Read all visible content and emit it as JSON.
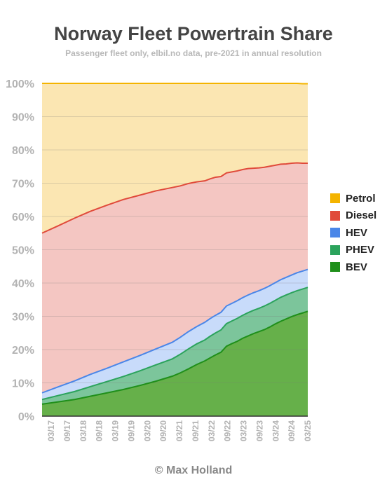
{
  "chart_data": {
    "type": "area",
    "stacked": true,
    "title": "Norway Fleet Powertrain Share",
    "subtitle": "Passenger fleet only, elbil.no data, pre-2021 in annual resolution",
    "credit": "© Max Holland",
    "ylim": [
      0,
      100
    ],
    "yticks": [
      "0%",
      "10%",
      "20%",
      "30%",
      "40%",
      "50%",
      "60%",
      "70%",
      "80%",
      "90%",
      "100%"
    ],
    "xticks": [
      "03/17",
      "09/17",
      "03/18",
      "09/18",
      "03/19",
      "09/19",
      "03/20",
      "09/20",
      "03/21",
      "09/21",
      "03/22",
      "09/22",
      "03/23",
      "09/23",
      "03/24",
      "09/24",
      "03/25"
    ],
    "legend_position": "right",
    "x": [
      "2017-01",
      "2017-07",
      "2018-01",
      "2018-07",
      "2019-01",
      "2019-07",
      "2020-01",
      "2020-07",
      "2021-01",
      "2021-04",
      "2021-07",
      "2021-10",
      "2022-01",
      "2022-03",
      "2022-05",
      "2022-07",
      "2022-09",
      "2022-11",
      "2023-01",
      "2023-03",
      "2023-05",
      "2023-07",
      "2023-09",
      "2023-11",
      "2024-01",
      "2024-03",
      "2024-05",
      "2024-07",
      "2024-09",
      "2024-11",
      "2025-01",
      "2025-03"
    ],
    "series": [
      {
        "name": "BEV",
        "color": "#1f8f1a",
        "values": [
          3.6,
          4.3,
          5.0,
          6.0,
          7.0,
          8.0,
          9.2,
          10.5,
          12.0,
          13.0,
          14.2,
          15.5,
          16.6,
          17.5,
          18.4,
          19.2,
          21.0,
          21.8,
          22.5,
          23.4,
          24.1,
          24.8,
          25.4,
          26.0,
          26.8,
          27.7,
          28.5,
          29.2,
          29.9,
          30.5,
          31.0,
          31.5
        ]
      },
      {
        "name": "PHEV",
        "color": "#2ba35c",
        "values": [
          1.4,
          1.9,
          2.4,
          2.9,
          3.4,
          3.9,
          4.4,
          4.9,
          5.2,
          5.6,
          6.0,
          6.2,
          6.3,
          6.5,
          6.6,
          6.7,
          6.8,
          6.8,
          6.9,
          6.9,
          7.0,
          7.0,
          7.0,
          7.1,
          7.1,
          7.1,
          7.2,
          7.2,
          7.2,
          7.2,
          7.2,
          7.2
        ]
      },
      {
        "name": "HEV",
        "color": "#4a86e8",
        "values": [
          2.0,
          2.6,
          3.2,
          3.7,
          4.0,
          4.4,
          4.6,
          4.8,
          5.0,
          5.1,
          5.2,
          5.2,
          5.3,
          5.3,
          5.3,
          5.3,
          5.3,
          5.3,
          5.3,
          5.3,
          5.3,
          5.3,
          5.3,
          5.3,
          5.3,
          5.3,
          5.3,
          5.3,
          5.3,
          5.4,
          5.4,
          5.4
        ]
      },
      {
        "name": "Diesel",
        "color": "#e04a3a",
        "values": [
          48.0,
          48.4,
          48.9,
          49.0,
          49.0,
          48.8,
          48.2,
          47.5,
          46.5,
          45.5,
          44.5,
          43.5,
          42.5,
          42.0,
          41.5,
          40.8,
          40.0,
          39.5,
          39.0,
          38.5,
          38.0,
          37.4,
          36.9,
          36.4,
          35.9,
          35.3,
          34.7,
          34.1,
          33.6,
          33.0,
          32.4,
          31.9
        ]
      },
      {
        "name": "Petrol",
        "color": "#f4b400",
        "values": [
          45.0,
          42.8,
          40.5,
          38.4,
          36.6,
          34.9,
          33.6,
          32.3,
          31.3,
          30.8,
          30.1,
          29.6,
          29.3,
          28.7,
          28.2,
          28.0,
          26.9,
          26.6,
          26.3,
          25.9,
          25.6,
          25.5,
          25.4,
          25.2,
          24.9,
          24.6,
          24.3,
          24.2,
          24.0,
          23.9,
          23.9,
          23.9
        ]
      }
    ]
  }
}
